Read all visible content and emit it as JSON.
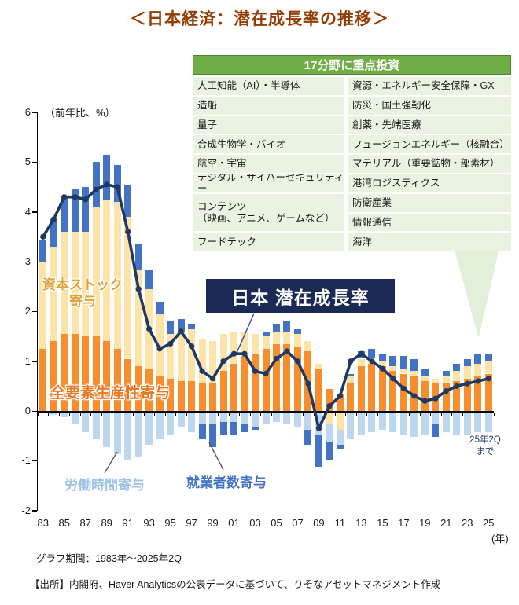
{
  "title": "＜日本経済：潜在成長率の推移＞",
  "investment_table": {
    "header": "17分野に重点投資",
    "left_column": [
      "人工知能（AI）・半導体",
      "造船",
      "量子",
      "合成生物学・バイオ",
      "航空・宇宙",
      "デジタル・サイバーセキュリティー",
      "コンテンツ\n（映画、アニメ、ゲームなど）",
      "フードテック"
    ],
    "right_column": [
      "資源・エネルギー安全保障・GX",
      "防災・国土強靭化",
      "創薬・先端医療",
      "フュージョンエネルギー（核融合）",
      "マテリアル（重要鉱物・部素材）",
      "港湾ロジスティクス",
      "防衛産業",
      "情報通信",
      "海洋"
    ]
  },
  "labels": {
    "y_axis_unit": "（前年比、%）",
    "x_axis_unit": "(年)",
    "capital_line1": "資本ストック",
    "capital_line2": "寄与",
    "tfp": "全要素生産性寄与",
    "hours": "労働時間寄与",
    "employment": "就業者数寄与",
    "line_box": "日本 潜在成長率",
    "latest_note_line1": "25年2Q",
    "latest_note_line2": "まで"
  },
  "footer": {
    "period": "グラフ期間：1983年～2025年2Q",
    "source": "【出所】内閣府、Haver Analyticsの公表データに基づいて、りそなアセットマネジメント作成"
  },
  "colors": {
    "title_text": "#943D05",
    "header_green": "#71AD47",
    "header_border": "#538135",
    "row_green": "#EAF3E2",
    "triangle_green": "#E2EFD9",
    "tfp_orange": "#F78E2D",
    "capital_cream": "#FCE4A8",
    "employment_blue": "#4472C4",
    "hours_lightblue": "#BDD7EE",
    "line_navy": "#1F3864",
    "box_navy": "#1B2A55",
    "capital_label_text": "#DFA33C",
    "tfp_label_text": "#E87722",
    "hours_label_text": "#9DC3E6",
    "employment_label_text": "#4472C4",
    "leader_gray": "#595959",
    "leader_blue": "#2E4B8F"
  },
  "chart_data": {
    "type": "stacked-bar-with-line",
    "title": "日本経済：潜在成長率の推移",
    "period": "1983-2025 2Q",
    "ylabel": "前年比、%",
    "ylim": [
      -2,
      6
    ],
    "y_ticks": [
      6,
      5,
      4,
      3,
      2,
      1,
      0,
      -1,
      -2
    ],
    "years": [
      "83",
      "84",
      "85",
      "86",
      "87",
      "88",
      "89",
      "90",
      "91",
      "92",
      "93",
      "94",
      "95",
      "96",
      "97",
      "98",
      "99",
      "00",
      "01",
      "02",
      "03",
      "04",
      "05",
      "06",
      "07",
      "08",
      "09",
      "10",
      "11",
      "12",
      "13",
      "14",
      "15",
      "16",
      "17",
      "18",
      "19",
      "20",
      "21",
      "22",
      "23",
      "24",
      "25"
    ],
    "x_axis_tick_labels": [
      "83",
      "85",
      "87",
      "89",
      "91",
      "93",
      "95",
      "97",
      "99",
      "01",
      "03",
      "05",
      "07",
      "09",
      "11",
      "13",
      "15",
      "17",
      "19",
      "21",
      "23",
      "25"
    ],
    "bar_series": [
      {
        "name": "全要素生産性寄与",
        "color_key": "tfp_orange",
        "values": [
          1.25,
          1.4,
          1.55,
          1.55,
          1.5,
          1.5,
          1.4,
          1.25,
          1.05,
          0.9,
          0.85,
          0.7,
          0.65,
          0.6,
          0.6,
          0.55,
          0.55,
          0.8,
          0.95,
          1.1,
          1.15,
          1.25,
          1.35,
          1.35,
          1.3,
          1.2,
          0.85,
          0.45,
          0.35,
          0.55,
          0.9,
          0.95,
          0.9,
          0.8,
          0.75,
          0.7,
          0.6,
          0.55,
          0.55,
          0.6,
          0.65,
          0.7,
          0.75
        ]
      },
      {
        "name": "資本ストック寄与",
        "color_key": "capital_cream",
        "values": [
          1.75,
          1.9,
          2.05,
          2.05,
          2.1,
          2.6,
          2.85,
          2.95,
          2.85,
          1.95,
          1.6,
          1.25,
          0.9,
          1.0,
          1.05,
          0.9,
          0.85,
          0.75,
          0.65,
          0.5,
          0.4,
          0.25,
          0.25,
          0.25,
          0.25,
          0.2,
          0.1,
          -0.25,
          -0.35,
          0.15,
          0.15,
          0.1,
          0.1,
          0.1,
          0.1,
          0.1,
          0.1,
          0.1,
          0.15,
          0.2,
          0.25,
          0.25,
          0.25
        ]
      },
      {
        "name": "労働時間寄与",
        "color_key": "hours_lightblue",
        "values": [
          0.0,
          -0.05,
          -0.1,
          -0.25,
          -0.4,
          -0.55,
          -0.7,
          -0.85,
          -0.95,
          -0.9,
          -0.65,
          -0.55,
          -0.45,
          -0.3,
          -0.4,
          -0.25,
          -0.25,
          -0.2,
          -0.2,
          -0.25,
          -0.3,
          -0.25,
          -0.2,
          -0.25,
          -0.3,
          -0.35,
          -0.45,
          -0.35,
          -0.3,
          -0.55,
          -0.45,
          -0.4,
          -0.35,
          -0.4,
          -0.45,
          -0.5,
          -0.45,
          -0.25,
          -0.4,
          -0.45,
          -0.45,
          -0.4,
          -0.4
        ]
      },
      {
        "name": "就業者数寄与",
        "color_key": "employment_blue",
        "values": [
          0.45,
          0.55,
          0.7,
          0.85,
          0.9,
          0.9,
          0.9,
          0.75,
          0.65,
          0.5,
          0.4,
          0.25,
          0.25,
          0.25,
          0.1,
          -0.3,
          -0.45,
          -0.25,
          -0.25,
          -0.15,
          -0.05,
          0.1,
          0.15,
          0.2,
          0.1,
          -0.3,
          -0.65,
          -0.35,
          -0.1,
          0.05,
          0.15,
          0.2,
          0.15,
          0.2,
          0.25,
          0.25,
          0.15,
          -0.25,
          0.1,
          0.15,
          0.15,
          0.2,
          0.15
        ]
      }
    ],
    "line_series": {
      "name": "日本 潜在成長率",
      "color_key": "line_navy",
      "values": [
        3.5,
        3.85,
        4.3,
        4.3,
        4.25,
        4.45,
        4.55,
        4.5,
        3.6,
        2.45,
        1.65,
        1.25,
        1.35,
        1.6,
        1.3,
        0.8,
        0.65,
        1.0,
        1.15,
        1.15,
        0.8,
        0.75,
        1.05,
        1.2,
        1.0,
        0.55,
        -0.35,
        0.1,
        0.3,
        1.0,
        1.15,
        1.0,
        0.85,
        0.65,
        0.45,
        0.3,
        0.2,
        0.25,
        0.4,
        0.5,
        0.55,
        0.6,
        0.65
      ]
    }
  }
}
